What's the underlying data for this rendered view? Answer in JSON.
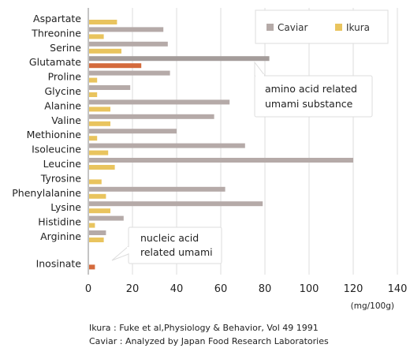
{
  "chart_data": {
    "type": "bar",
    "orientation": "horizontal",
    "categories": [
      "Aspartate",
      "Threonine",
      "Serine",
      "Glutamate",
      "Proline",
      "Glycine",
      "Alanine",
      "Valine",
      "Methionine",
      "Isoleucine",
      "Leucine",
      "Tyrosine",
      "Phenylalanine",
      "Lysine",
      "Histidine",
      "Arginine",
      "Inosinate"
    ],
    "series": [
      {
        "name": "Caviar",
        "color": "#b5aaa8",
        "values": [
          null,
          34,
          36,
          82,
          37,
          19,
          64,
          57,
          40,
          71,
          120,
          null,
          62,
          79,
          16,
          8,
          null
        ]
      },
      {
        "name": "Ikura",
        "color": "#e9c45e",
        "values": [
          13,
          7,
          15,
          24,
          4,
          4,
          10,
          10,
          4,
          9,
          12,
          6,
          8,
          10,
          3,
          7,
          3
        ]
      }
    ],
    "highlight": {
      "categories": [
        "Glutamate",
        "Inosinate"
      ],
      "color_caviar": "#a49c9a",
      "color_ikura": "#d46a3c"
    },
    "xlim": [
      0,
      140
    ],
    "xticks": [
      0,
      20,
      40,
      60,
      80,
      100,
      120,
      140
    ],
    "unit_label": "(mg/100g)",
    "legend_position": "top-right",
    "annotations": [
      {
        "lines": [
          "amino acid related",
          "umami substance"
        ],
        "points_to": "Glutamate"
      },
      {
        "lines": [
          "nucleic acid",
          "related umami"
        ],
        "points_to": "Inosinate"
      }
    ]
  },
  "footnotes": [
    "Ikura : Fuke et al,Physiology & Behavior, Vol 49 1991",
    "Caviar : Analyzed by Japan Food Research Laboratories"
  ]
}
